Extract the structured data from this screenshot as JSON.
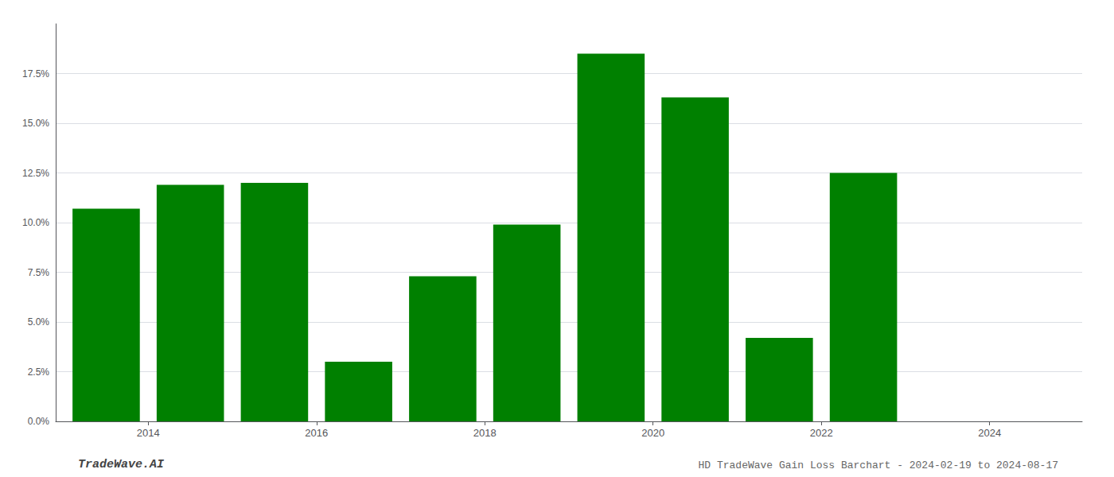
{
  "chart_data": {
    "type": "bar",
    "x": [
      2013.5,
      2014.5,
      2015.5,
      2016.5,
      2017.5,
      2018.5,
      2019.5,
      2020.5,
      2021.5,
      2022.5,
      2023.5
    ],
    "values": [
      0.107,
      0.119,
      0.12,
      0.03,
      0.073,
      0.099,
      0.185,
      0.163,
      0.042,
      0.125,
      0.0
    ],
    "color": "#008000",
    "xlim": [
      2012.9,
      2025.1
    ],
    "xticks": [
      2014,
      2016,
      2018,
      2020,
      2022,
      2024
    ],
    "ylim": [
      0.0,
      0.2
    ],
    "yticks": [
      {
        "value": 0.0,
        "label": "0.0%"
      },
      {
        "value": 0.025,
        "label": "2.5%"
      },
      {
        "value": 0.05,
        "label": "5.0%"
      },
      {
        "value": 0.075,
        "label": "7.5%"
      },
      {
        "value": 0.1,
        "label": "10.0%"
      },
      {
        "value": 0.125,
        "label": "12.5%"
      },
      {
        "value": 0.15,
        "label": "15.0%"
      },
      {
        "value": 0.175,
        "label": "17.5%"
      }
    ],
    "grid": true,
    "annotations": [
      "TradeWave.AI",
      "HD TradeWave Gain Loss Barchart - 2024-02-19 to 2024-08-17"
    ]
  }
}
